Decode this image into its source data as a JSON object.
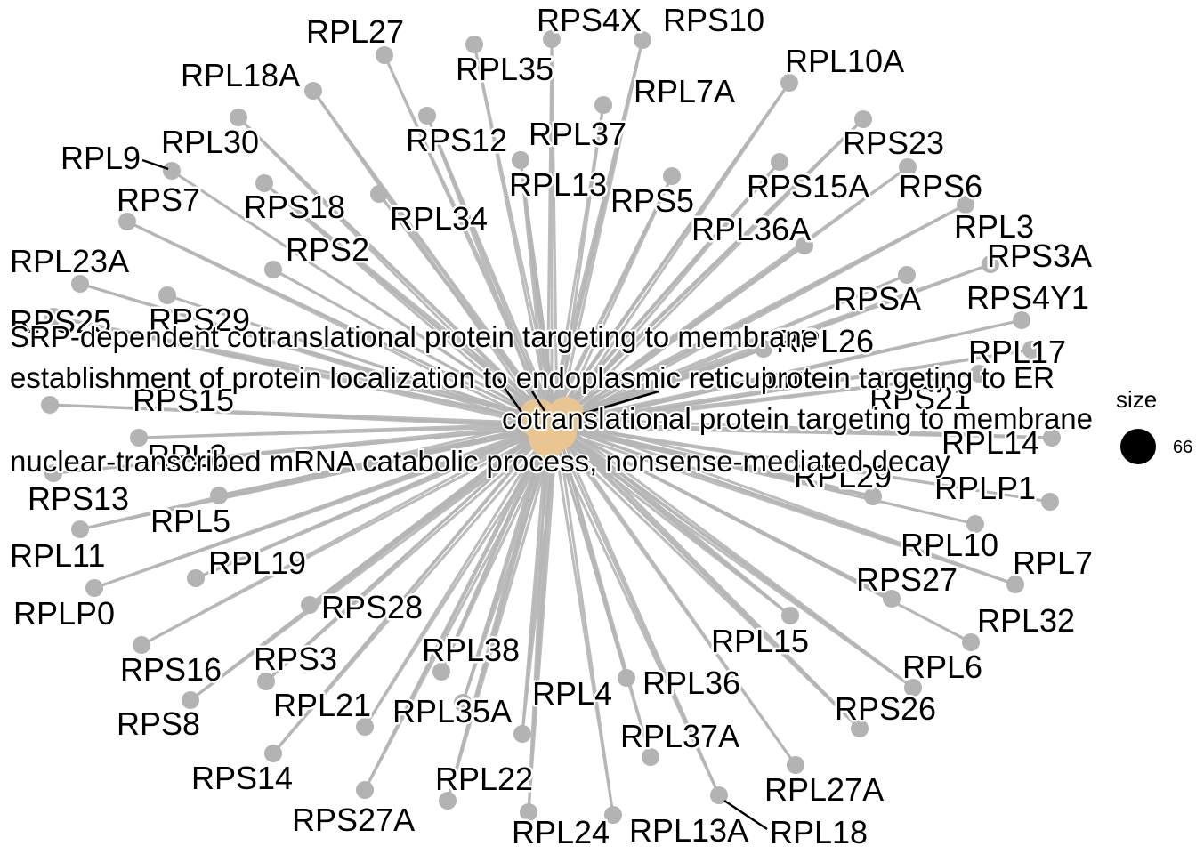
{
  "terms": [
    "SRP-dependent cotranslational protein targeting to membrane",
    "establishment of protein localization to endoplasmic reticulum",
    "protein targeting to ER",
    "cotranslational protein targeting to membrane",
    "nuclear-transcribed mRNA catabolic process, nonsense-mediated decay"
  ],
  "genes": [
    "RPL27",
    "RPS4X",
    "RPS10",
    "RPL35",
    "RPL18A",
    "RPL10A",
    "RPL7A",
    "RPS12",
    "RPL37",
    "RPL9",
    "RPL30",
    "RPS23",
    "RPL13",
    "RPS5",
    "RPS15A",
    "RPS6",
    "RPS7",
    "RPS18",
    "RPL34",
    "RPL36A",
    "RPL3",
    "RPS2",
    "RPL23A",
    "RPS3A",
    "RPSA",
    "RPS4Y1",
    "RPS25",
    "RPS29",
    "RPL17",
    "RPL26",
    "RPS21",
    "RPS15",
    "RPL14",
    "RPL8",
    "RPS13",
    "RPL29",
    "RPLP1",
    "RPL5",
    "RPL11",
    "RPL10",
    "RPL19",
    "RPL7",
    "RPS27",
    "RPLP0",
    "RPS28",
    "RPL32",
    "RPL38",
    "RPL15",
    "RPS16",
    "RPS3",
    "RPL6",
    "RPL36",
    "RPL4",
    "RPS26",
    "RPL21",
    "RPL35A",
    "RPS8",
    "RPL37A",
    "RPS14",
    "RPL22",
    "RPL27A",
    "RPS27A",
    "RPL24",
    "RPL13A",
    "RPL18"
  ],
  "legend": {
    "title": "size",
    "value": "66"
  },
  "colors": {
    "edge": "#b5b5b5",
    "gene_node": "#b3b3b3",
    "term_node": "#e8c591"
  }
}
